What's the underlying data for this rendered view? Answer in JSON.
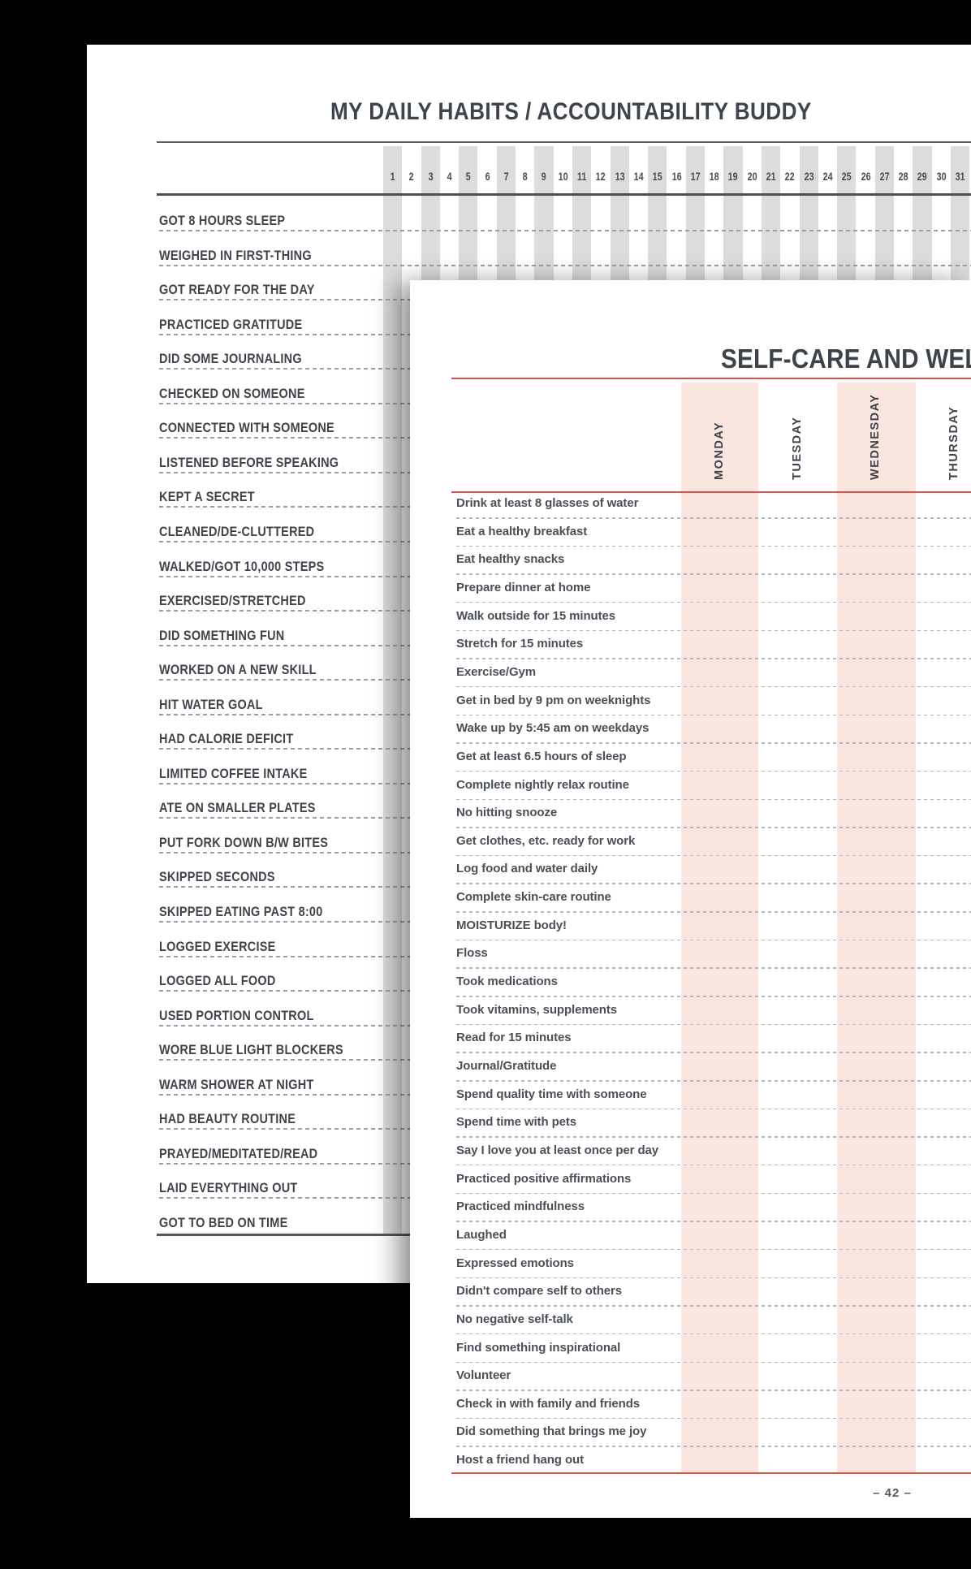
{
  "page1": {
    "title": "MY DAILY HABITS / ACCOUNTABILITY BUDDY",
    "day_numbers": [
      1,
      2,
      3,
      4,
      5,
      6,
      7,
      8,
      9,
      10,
      11,
      12,
      13,
      14,
      15,
      16,
      17,
      18,
      19,
      20,
      21,
      22,
      23,
      24,
      25,
      26,
      27,
      28,
      29,
      30,
      31
    ],
    "habits": [
      "GOT 8 HOURS SLEEP",
      "WEIGHED IN FIRST-THING",
      "GOT READY FOR THE DAY",
      "PRACTICED GRATITUDE",
      "DID SOME JOURNALING",
      "CHECKED ON SOMEONE",
      "CONNECTED WITH SOMEONE",
      "LISTENED BEFORE SPEAKING",
      "KEPT A SECRET",
      "CLEANED/DE-CLUTTERED",
      "WALKED/GOT 10,000 STEPS",
      "EXERCISED/STRETCHED",
      "DID SOMETHING FUN",
      "WORKED ON A NEW SKILL",
      "HIT WATER GOAL",
      "HAD CALORIE DEFICIT",
      "LIMITED COFFEE INTAKE",
      "ATE ON SMALLER PLATES",
      "PUT FORK DOWN B/W BITES",
      "SKIPPED SECONDS",
      "SKIPPED EATING PAST 8:00",
      "LOGGED EXERCISE",
      "LOGGED ALL FOOD",
      "USED PORTION CONTROL",
      "WORE BLUE LIGHT BLOCKERS",
      "WARM SHOWER AT NIGHT",
      "HAD BEAUTY ROUTINE",
      "PRAYED/MEDITATED/READ",
      "LAID EVERYTHING OUT",
      "GOT TO BED ON TIME"
    ]
  },
  "page2": {
    "title": "SELF-CARE AND WELL",
    "day_headers": [
      "MONDAY",
      "TUESDAY",
      "WEDNESDAY",
      "THURSDAY"
    ],
    "items": [
      "Drink at least 8 glasses of water",
      "Eat a healthy breakfast",
      "Eat healthy snacks",
      "Prepare dinner at home",
      "Walk outside for 15 minutes",
      "Stretch for 15 minutes",
      "Exercise/Gym",
      "Get in bed by 9 pm on weeknights",
      "Wake up by 5:45 am on weekdays",
      "Get at least 6.5 hours of sleep",
      "Complete nightly relax routine",
      "No hitting snooze",
      "Get clothes, etc. ready for work",
      "Log food and water daily",
      "Complete skin-care routine",
      "MOISTURIZE body!",
      "Floss",
      "Took medications",
      "Took vitamins, supplements",
      "Read for 15 minutes",
      "Journal/Gratitude",
      "Spend quality time with someone",
      "Spend time with pets",
      "Say I love you at least once per day",
      "Practiced positive affirmations",
      "Practiced mindfulness",
      "Laughed",
      "Expressed emotions",
      "Didn't compare self to others",
      "No negative self-talk",
      "Find something inspirational",
      "Volunteer",
      "Check in with family and friends",
      "Did something that brings me joy",
      "Host a friend hang out"
    ],
    "page_number": "– 42 –"
  },
  "colors": {
    "background": "#000000",
    "paper": "#ffffff",
    "stripe_gray": "#dcdcda",
    "stripe_pink": "#fbe5df",
    "accent_red": "#e0504b",
    "text_dark": "#3e444c",
    "rule_gray": "#54585d"
  }
}
